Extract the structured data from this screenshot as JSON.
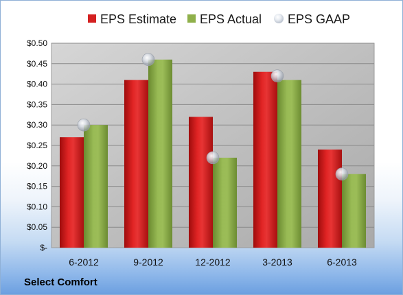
{
  "chart_data": {
    "type": "bar",
    "categories": [
      "6-2012",
      "9-2012",
      "12-2012",
      "3-2013",
      "6-2013"
    ],
    "series": [
      {
        "name": "EPS Estimate",
        "kind": "bar",
        "color": "#d42020",
        "values": [
          0.27,
          0.41,
          0.32,
          0.43,
          0.24
        ]
      },
      {
        "name": "EPS Actual",
        "kind": "bar",
        "color": "#8fb04a",
        "values": [
          0.3,
          0.46,
          0.22,
          0.41,
          0.18
        ]
      },
      {
        "name": "EPS GAAP",
        "kind": "marker",
        "color": "#c8ccd4",
        "values": [
          0.3,
          0.46,
          0.22,
          0.42,
          0.18
        ]
      }
    ],
    "ylim": [
      0,
      0.5
    ],
    "yticks": [
      0,
      0.05,
      0.1,
      0.15,
      0.2,
      0.25,
      0.3,
      0.35,
      0.4,
      0.45,
      0.5
    ],
    "ytick_labels": [
      "$-",
      "$0.05",
      "$0.10",
      "$0.15",
      "$0.20",
      "$0.25",
      "$0.30",
      "$0.35",
      "$0.40",
      "$0.45",
      "$0.50"
    ],
    "grid": true,
    "legend_position": "top"
  },
  "legend": {
    "estimate": "EPS Estimate",
    "actual": "EPS Actual",
    "gaap": "EPS GAAP"
  },
  "footer": {
    "company": "Select Comfort"
  }
}
